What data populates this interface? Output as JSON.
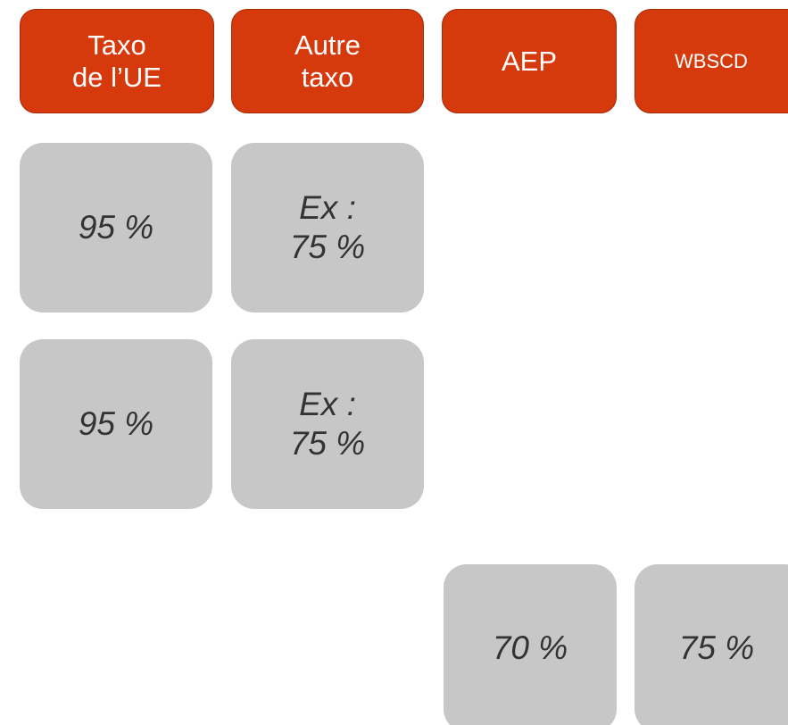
{
  "headers": [
    [
      "Taxo",
      "de l’UE"
    ],
    [
      "Autre",
      "taxo"
    ],
    [
      "AEP"
    ],
    [
      "WBSCD"
    ]
  ],
  "cells": [
    [
      "95 %"
    ],
    [
      "Ex :",
      "75 %"
    ],
    [
      "95 %"
    ],
    [
      "Ex :",
      "75 %"
    ],
    [
      "70 %"
    ],
    [
      "75 %"
    ]
  ]
}
